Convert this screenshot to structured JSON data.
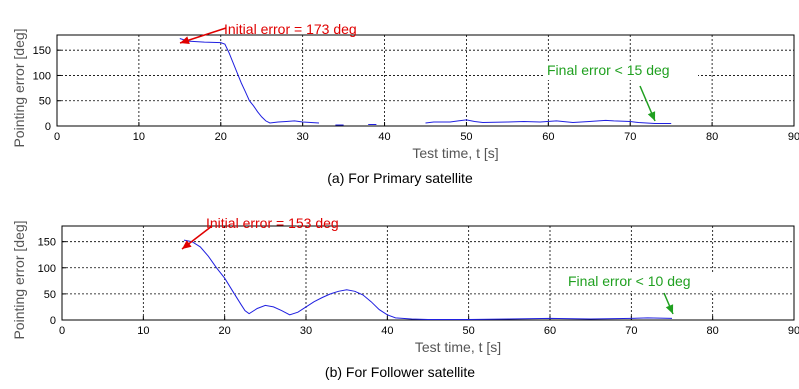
{
  "colors": {
    "series": "#2020e0",
    "initial_annotation": "#e00000",
    "final_annotation": "#20a020",
    "grid": "#000000"
  },
  "chart_data": [
    {
      "type": "line",
      "caption": "(a) For Primary satellite",
      "xlabel": "Test time, t [s]",
      "ylabel": "Pointing error [deg]",
      "xlim": [
        0,
        90
      ],
      "ylim": [
        0,
        180
      ],
      "xticks": [
        "0",
        "10",
        "20",
        "30",
        "40",
        "50",
        "60",
        "70",
        "80",
        "90"
      ],
      "yticks": [
        "0",
        "50",
        "100",
        "150"
      ],
      "grid": true,
      "series": [
        {
          "segments": [
            [
              [
                15,
                173
              ],
              [
                16,
                168
              ],
              [
                18,
                166
              ],
              [
                20,
                165
              ],
              [
                20.5,
                162
              ],
              [
                21,
                145
              ],
              [
                21.5,
                125
              ],
              [
                22,
                105
              ],
              [
                22.5,
                85
              ],
              [
                23,
                68
              ],
              [
                23.5,
                50
              ],
              [
                24,
                40
              ],
              [
                24.5,
                28
              ],
              [
                25,
                18
              ],
              [
                25.5,
                10
              ],
              [
                26,
                6
              ],
              [
                27,
                8
              ],
              [
                28,
                9
              ],
              [
                29,
                10
              ],
              [
                30,
                8
              ],
              [
                31,
                7
              ],
              [
                32,
                6
              ]
            ],
            [
              [
                34,
                2
              ],
              [
                35,
                2
              ]
            ],
            [
              [
                38,
                3
              ],
              [
                39,
                3
              ]
            ],
            [
              [
                45,
                6
              ],
              [
                46,
                8
              ],
              [
                48,
                8
              ],
              [
                49,
                10
              ],
              [
                50,
                12
              ],
              [
                51,
                9
              ],
              [
                52,
                7
              ],
              [
                55,
                8
              ],
              [
                57,
                9
              ],
              [
                59,
                8
              ],
              [
                61,
                10
              ],
              [
                63,
                7
              ],
              [
                65,
                9
              ],
              [
                67,
                11
              ],
              [
                68,
                10
              ],
              [
                70,
                9
              ],
              [
                71,
                7
              ],
              [
                73,
                5
              ],
              [
                75,
                5
              ]
            ]
          ]
        }
      ],
      "annotations": [
        {
          "text": "Initial error = 173 deg",
          "x": 15,
          "y": 173,
          "color": "red"
        },
        {
          "text": "Final error < 15 deg",
          "x": 73,
          "y": 10,
          "color": "green"
        }
      ]
    },
    {
      "type": "line",
      "caption": "(b) For Follower satellite",
      "xlabel": "Test time, t [s]",
      "ylabel": "Pointing error [deg]",
      "xlim": [
        0,
        90
      ],
      "ylim": [
        0,
        180
      ],
      "xticks": [
        "0",
        "10",
        "20",
        "30",
        "40",
        "50",
        "60",
        "70",
        "80",
        "90"
      ],
      "yticks": [
        "0",
        "50",
        "100",
        "150"
      ],
      "grid": true,
      "series": [
        {
          "segments": [
            [
              [
                15,
                153
              ],
              [
                16,
                150
              ],
              [
                17,
                140
              ],
              [
                18,
                122
              ],
              [
                19,
                100
              ],
              [
                20,
                80
              ],
              [
                21,
                55
              ],
              [
                22,
                30
              ],
              [
                22.5,
                18
              ],
              [
                23,
                12
              ],
              [
                24,
                22
              ],
              [
                25,
                28
              ],
              [
                26,
                25
              ],
              [
                27,
                18
              ],
              [
                28,
                10
              ],
              [
                29,
                15
              ],
              [
                30,
                25
              ],
              [
                31,
                35
              ],
              [
                32,
                43
              ],
              [
                33,
                50
              ],
              [
                34,
                55
              ],
              [
                35,
                58
              ],
              [
                36,
                55
              ],
              [
                37,
                48
              ],
              [
                38,
                35
              ],
              [
                39,
                20
              ],
              [
                40,
                10
              ],
              [
                41,
                4
              ],
              [
                43,
                2
              ],
              [
                45,
                1
              ],
              [
                50,
                1
              ],
              [
                55,
                2
              ],
              [
                60,
                3
              ],
              [
                65,
                2
              ],
              [
                70,
                3
              ],
              [
                72,
                4
              ],
              [
                75,
                3
              ]
            ]
          ]
        }
      ],
      "annotations": [
        {
          "text": "Initial error = 153 deg",
          "x": 15,
          "y": 153,
          "color": "red"
        },
        {
          "text": "Final error < 10 deg",
          "x": 74,
          "y": 5,
          "color": "green"
        }
      ]
    }
  ]
}
